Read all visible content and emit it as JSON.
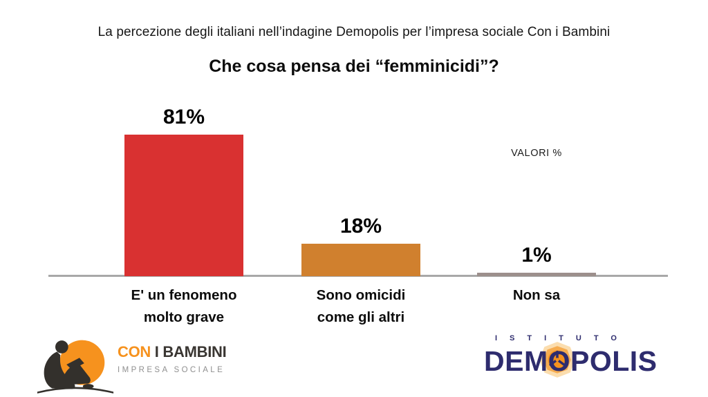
{
  "page": {
    "subtitle": "La percezione degli italiani nell’indagine Demopolis per l’impresa sociale Con i Bambini",
    "title": "Che cosa pensa dei “femminicidi”?"
  },
  "chart_data": {
    "type": "bar",
    "title": "Che cosa pensa dei “femminicidi”?",
    "subtitle": "La percezione degli italiani nell’indagine Demopolis per l’impresa sociale Con i Bambini",
    "categories": [
      "E' un fenomeno\nmolto grave",
      "Sono omicidi\ncome gli altri",
      "Non sa"
    ],
    "values": [
      81,
      18,
      1
    ],
    "value_labels": [
      "81%",
      "18%",
      "1%"
    ],
    "bar_colors": [
      "#d93131",
      "#d0802e",
      "#9c8f8c"
    ],
    "annotation": "VALORI %",
    "xlabel": "",
    "ylabel": "",
    "ylim": [
      0,
      100
    ],
    "grid": false,
    "legend": false,
    "baseline_color": "#a8a8a8"
  },
  "footer": {
    "con_i_bambini": {
      "name_accent": "CON",
      "name_rest": " I BAMBINI",
      "tagline": "IMPRESA SOCIALE",
      "accent_color": "#f6921e",
      "dark_color": "#3a3632"
    },
    "demopolis": {
      "istituto": "ISTITUTO",
      "name": "DEMOPOLIS",
      "navy_color": "#2e2c6e",
      "orange_color": "#f6921e"
    }
  }
}
